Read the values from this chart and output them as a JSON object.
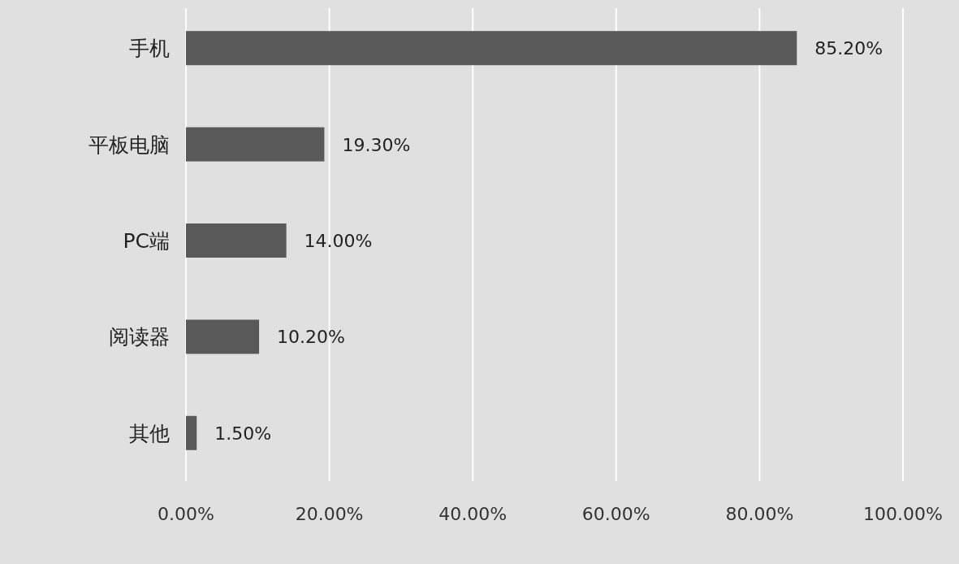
{
  "chart_data": {
    "type": "bar",
    "orientation": "horizontal",
    "categories": [
      "手机",
      "平板电脑",
      "PC端",
      "阅读器",
      "其他"
    ],
    "values": [
      85.2,
      19.3,
      14.0,
      10.2,
      1.5
    ],
    "value_labels": [
      "85.20%",
      "19.30%",
      "14.00%",
      "10.20%",
      "1.50%"
    ],
    "color": "#595959",
    "xlim": [
      0,
      100
    ],
    "xticks": [
      {
        "value": 0,
        "label": "0.00%"
      },
      {
        "value": 20,
        "label": "20.00%"
      },
      {
        "value": 40,
        "label": "40.00%"
      },
      {
        "value": 60,
        "label": "60.00%"
      },
      {
        "value": 80,
        "label": "80.00%"
      },
      {
        "value": 100,
        "label": "100.00%"
      }
    ],
    "grid": "x"
  }
}
